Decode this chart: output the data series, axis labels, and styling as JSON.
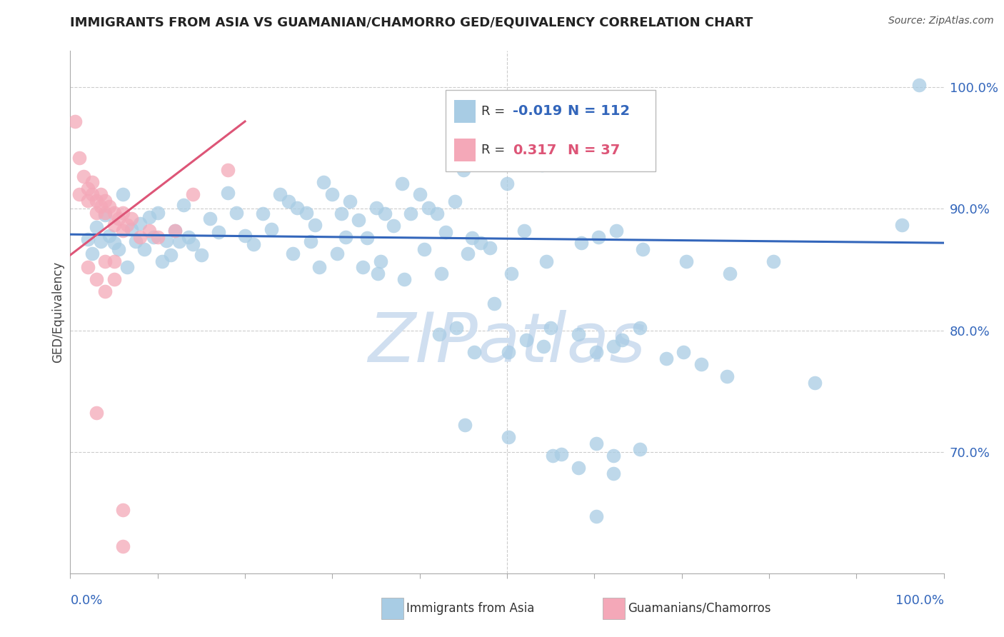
{
  "title": "IMMIGRANTS FROM ASIA VS GUAMANIAN/CHAMORRO GED/EQUIVALENCY CORRELATION CHART",
  "source": "Source: ZipAtlas.com",
  "ylabel": "GED/Equivalency",
  "ytick_labels": [
    "100.0%",
    "90.0%",
    "80.0%",
    "70.0%"
  ],
  "ytick_values": [
    1.0,
    0.9,
    0.8,
    0.7
  ],
  "xlim": [
    0.0,
    1.0
  ],
  "ylim": [
    0.6,
    1.03
  ],
  "legend_r_blue": "-0.019",
  "legend_n_blue": "112",
  "legend_r_pink": "0.317",
  "legend_n_pink": "37",
  "blue_color": "#a8cce4",
  "pink_color": "#f4a8b8",
  "blue_line_color": "#3366bb",
  "pink_line_color": "#dd5577",
  "watermark": "ZIPatlas",
  "watermark_color": "#d0dff0",
  "blue_scatter": [
    [
      0.02,
      0.875
    ],
    [
      0.03,
      0.885
    ],
    [
      0.04,
      0.895
    ],
    [
      0.05,
      0.872
    ],
    [
      0.06,
      0.912
    ],
    [
      0.07,
      0.883
    ],
    [
      0.08,
      0.888
    ],
    [
      0.09,
      0.893
    ],
    [
      0.1,
      0.897
    ],
    [
      0.11,
      0.874
    ],
    [
      0.12,
      0.882
    ],
    [
      0.13,
      0.903
    ],
    [
      0.14,
      0.871
    ],
    [
      0.15,
      0.862
    ],
    [
      0.16,
      0.892
    ],
    [
      0.17,
      0.881
    ],
    [
      0.18,
      0.913
    ],
    [
      0.19,
      0.897
    ],
    [
      0.2,
      0.878
    ],
    [
      0.21,
      0.871
    ],
    [
      0.22,
      0.896
    ],
    [
      0.23,
      0.883
    ],
    [
      0.24,
      0.912
    ],
    [
      0.25,
      0.906
    ],
    [
      0.26,
      0.901
    ],
    [
      0.27,
      0.897
    ],
    [
      0.28,
      0.887
    ],
    [
      0.29,
      0.922
    ],
    [
      0.3,
      0.912
    ],
    [
      0.31,
      0.896
    ],
    [
      0.32,
      0.906
    ],
    [
      0.33,
      0.891
    ],
    [
      0.34,
      0.876
    ],
    [
      0.35,
      0.901
    ],
    [
      0.36,
      0.896
    ],
    [
      0.37,
      0.886
    ],
    [
      0.38,
      0.921
    ],
    [
      0.39,
      0.896
    ],
    [
      0.4,
      0.912
    ],
    [
      0.41,
      0.901
    ],
    [
      0.42,
      0.896
    ],
    [
      0.43,
      0.881
    ],
    [
      0.44,
      0.906
    ],
    [
      0.45,
      0.932
    ],
    [
      0.46,
      0.876
    ],
    [
      0.47,
      0.872
    ],
    [
      0.48,
      0.868
    ],
    [
      0.5,
      0.921
    ],
    [
      0.52,
      0.882
    ],
    [
      0.54,
      0.936
    ],
    [
      0.025,
      0.863
    ],
    [
      0.035,
      0.873
    ],
    [
      0.045,
      0.878
    ],
    [
      0.055,
      0.867
    ],
    [
      0.065,
      0.852
    ],
    [
      0.075,
      0.873
    ],
    [
      0.085,
      0.867
    ],
    [
      0.095,
      0.877
    ],
    [
      0.105,
      0.857
    ],
    [
      0.115,
      0.862
    ],
    [
      0.125,
      0.873
    ],
    [
      0.135,
      0.877
    ],
    [
      0.255,
      0.863
    ],
    [
      0.275,
      0.873
    ],
    [
      0.285,
      0.852
    ],
    [
      0.305,
      0.863
    ],
    [
      0.315,
      0.877
    ],
    [
      0.335,
      0.852
    ],
    [
      0.355,
      0.857
    ],
    [
      0.405,
      0.867
    ],
    [
      0.425,
      0.847
    ],
    [
      0.455,
      0.863
    ],
    [
      0.485,
      0.822
    ],
    [
      0.505,
      0.847
    ],
    [
      0.545,
      0.857
    ],
    [
      0.585,
      0.872
    ],
    [
      0.605,
      0.877
    ],
    [
      0.625,
      0.882
    ],
    [
      0.655,
      0.867
    ],
    [
      0.705,
      0.857
    ],
    [
      0.755,
      0.847
    ],
    [
      0.805,
      0.857
    ],
    [
      0.55,
      0.802
    ],
    [
      0.582,
      0.797
    ],
    [
      0.602,
      0.782
    ],
    [
      0.622,
      0.787
    ],
    [
      0.632,
      0.792
    ],
    [
      0.652,
      0.802
    ],
    [
      0.682,
      0.777
    ],
    [
      0.702,
      0.782
    ],
    [
      0.722,
      0.772
    ],
    [
      0.752,
      0.762
    ],
    [
      0.852,
      0.757
    ],
    [
      0.452,
      0.722
    ],
    [
      0.502,
      0.712
    ],
    [
      0.552,
      0.697
    ],
    [
      0.602,
      0.707
    ],
    [
      0.622,
      0.697
    ],
    [
      0.652,
      0.702
    ],
    [
      0.582,
      0.687
    ],
    [
      0.622,
      0.682
    ],
    [
      0.602,
      0.647
    ],
    [
      0.562,
      0.698
    ],
    [
      0.422,
      0.797
    ],
    [
      0.442,
      0.802
    ],
    [
      0.462,
      0.782
    ],
    [
      0.502,
      0.782
    ],
    [
      0.522,
      0.792
    ],
    [
      0.542,
      0.787
    ],
    [
      0.352,
      0.847
    ],
    [
      0.382,
      0.842
    ],
    [
      0.952,
      0.887
    ],
    [
      0.972,
      1.002
    ]
  ],
  "pink_scatter": [
    [
      0.005,
      0.972
    ],
    [
      0.01,
      0.942
    ],
    [
      0.01,
      0.912
    ],
    [
      0.015,
      0.927
    ],
    [
      0.02,
      0.917
    ],
    [
      0.02,
      0.907
    ],
    [
      0.025,
      0.922
    ],
    [
      0.025,
      0.912
    ],
    [
      0.03,
      0.907
    ],
    [
      0.03,
      0.897
    ],
    [
      0.035,
      0.912
    ],
    [
      0.035,
      0.902
    ],
    [
      0.04,
      0.907
    ],
    [
      0.04,
      0.897
    ],
    [
      0.045,
      0.902
    ],
    [
      0.05,
      0.897
    ],
    [
      0.05,
      0.887
    ],
    [
      0.055,
      0.892
    ],
    [
      0.06,
      0.897
    ],
    [
      0.06,
      0.882
    ],
    [
      0.065,
      0.887
    ],
    [
      0.07,
      0.892
    ],
    [
      0.08,
      0.877
    ],
    [
      0.09,
      0.882
    ],
    [
      0.1,
      0.877
    ],
    [
      0.12,
      0.882
    ],
    [
      0.14,
      0.912
    ],
    [
      0.18,
      0.932
    ],
    [
      0.02,
      0.852
    ],
    [
      0.03,
      0.842
    ],
    [
      0.04,
      0.832
    ],
    [
      0.05,
      0.842
    ],
    [
      0.03,
      0.732
    ],
    [
      0.04,
      0.857
    ],
    [
      0.05,
      0.857
    ],
    [
      0.06,
      0.622
    ],
    [
      0.06,
      0.652
    ]
  ],
  "blue_trendline": [
    [
      0.0,
      0.879
    ],
    [
      1.0,
      0.872
    ]
  ],
  "pink_trendline": [
    [
      0.0,
      0.862
    ],
    [
      0.2,
      0.972
    ]
  ]
}
